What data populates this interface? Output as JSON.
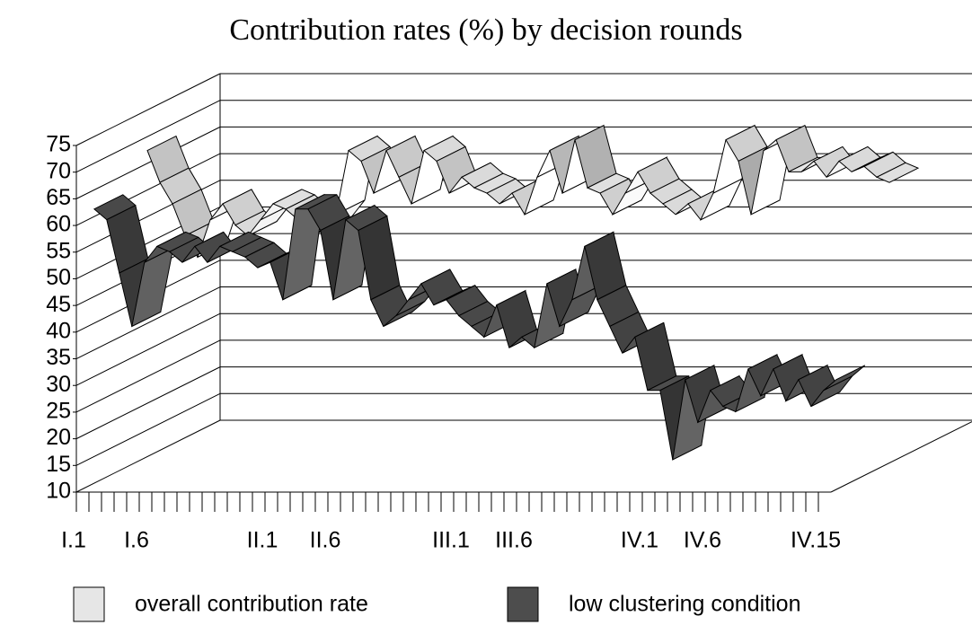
{
  "chart_data": {
    "type": "ribbon3d",
    "title": "Contribution rates (%) by decision rounds",
    "categories": [
      "I.1",
      null,
      null,
      null,
      null,
      "I.6",
      null,
      null,
      null,
      null,
      null,
      null,
      null,
      null,
      null,
      "II.1",
      null,
      null,
      null,
      null,
      "II.6",
      null,
      null,
      null,
      null,
      null,
      null,
      null,
      null,
      null,
      "III.1",
      null,
      null,
      null,
      null,
      "III.6",
      null,
      null,
      null,
      null,
      null,
      null,
      null,
      null,
      null,
      "IV.1",
      null,
      null,
      null,
      null,
      "IV.6",
      null,
      null,
      null,
      null,
      null,
      null,
      null,
      null,
      "IV.15"
    ],
    "series": [
      {
        "name": "overall contribution rate",
        "color": "#e6e6e6",
        "values": [
          68,
          62,
          58,
          52,
          48,
          55,
          58,
          54,
          52,
          55,
          58,
          57,
          55,
          52,
          53,
          56,
          68,
          66,
          60,
          68,
          63,
          58,
          68,
          66,
          60,
          63,
          61,
          60,
          58,
          60,
          56,
          63,
          68,
          60,
          70,
          61,
          60,
          56,
          60,
          64,
          60,
          58,
          56,
          58,
          55,
          60,
          70,
          66,
          56,
          68,
          70,
          64,
          64,
          66,
          63,
          66,
          64,
          65,
          63,
          62
        ]
      },
      {
        "name": "low clustering condition",
        "color": "#4d4d4d",
        "values": [
          62,
          60,
          50,
          40,
          52,
          55,
          54,
          52,
          55,
          52,
          55,
          54,
          53,
          51,
          52,
          45,
          62,
          62,
          58,
          45,
          60,
          58,
          45,
          40,
          42,
          45,
          48,
          44,
          45,
          42,
          40,
          38,
          44,
          36,
          38,
          36,
          48,
          40,
          45,
          55,
          45,
          40,
          35,
          38,
          28,
          28,
          15,
          30,
          22,
          28,
          25,
          24,
          32,
          27,
          32,
          26,
          30,
          25,
          28,
          30
        ]
      }
    ],
    "ylim": [
      10,
      75
    ],
    "yticks": [
      10,
      15,
      20,
      25,
      30,
      35,
      40,
      45,
      50,
      55,
      60,
      65,
      70,
      75
    ],
    "grid": true
  }
}
